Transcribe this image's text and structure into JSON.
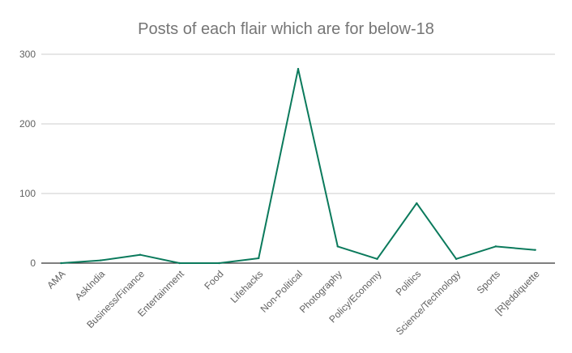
{
  "chart_data": {
    "type": "line",
    "title": "Posts of each flair which are for below-18",
    "xlabel": "",
    "ylabel": "",
    "categories": [
      "AMA",
      "AskIndia",
      "Business/Finance",
      "Entertainment",
      "Food",
      "Lifehacks",
      "Non-Political",
      "Photography",
      "Policy/Economy",
      "Politics",
      "Science/Technology",
      "Sports",
      "[R]eddiquette"
    ],
    "series": [
      {
        "values": [
          0,
          4,
          12,
          0,
          0,
          7,
          279,
          24,
          6,
          86,
          6,
          24,
          19
        ]
      }
    ],
    "ylim": [
      0,
      300
    ],
    "yticks": [
      0,
      100,
      200,
      300
    ],
    "grid": true,
    "line_color": "#0b7a5c",
    "grid_color": "#cccccc",
    "axis_color": "#333333"
  }
}
